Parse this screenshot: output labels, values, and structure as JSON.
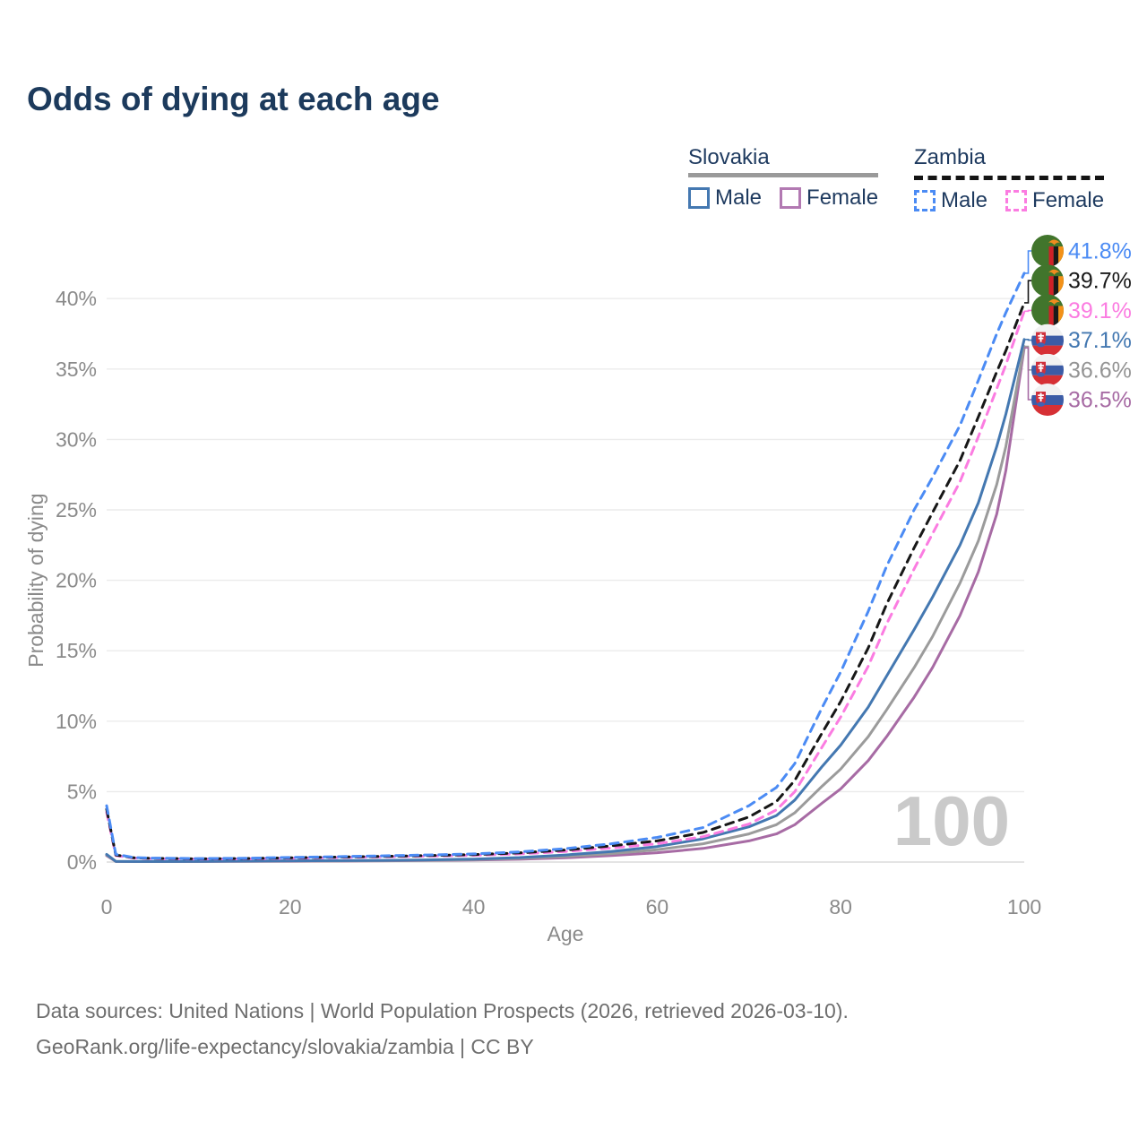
{
  "header": {
    "title": "Odds of dying at each age"
  },
  "legend": {
    "groups": [
      {
        "label": "Slovakia",
        "line_style": "solid",
        "underline_color": "#9a9a9a",
        "items": [
          {
            "label": "Male",
            "color": "#4478b1",
            "dashed": false
          },
          {
            "label": "Female",
            "color": "#b279b2",
            "dashed": false
          }
        ]
      },
      {
        "label": "Zambia",
        "line_style": "dashed",
        "underline_color": "#141414",
        "items": [
          {
            "label": "Male",
            "color": "#4b8bf4",
            "dashed": true
          },
          {
            "label": "Female",
            "color": "#fb7ce1",
            "dashed": true
          }
        ]
      }
    ]
  },
  "chart_data": {
    "type": "line",
    "title": "Odds of dying at each age",
    "xlabel": "Age",
    "ylabel": "Probability of dying",
    "xlim": [
      0,
      100
    ],
    "ylim": [
      0,
      42
    ],
    "x_ticks": [
      0,
      20,
      40,
      60,
      80,
      100
    ],
    "y_ticks": [
      0,
      5,
      10,
      15,
      20,
      25,
      30,
      35,
      40
    ],
    "y_tick_suffix": "%",
    "grid": "horizontal",
    "legend_position": "top-right",
    "watermark": "100",
    "ages": [
      0,
      1,
      3,
      5,
      10,
      15,
      20,
      25,
      30,
      35,
      40,
      45,
      50,
      55,
      60,
      65,
      70,
      73,
      75,
      78,
      80,
      83,
      85,
      88,
      90,
      93,
      95,
      97,
      98,
      100
    ],
    "series": [
      {
        "name": "Zambia Male",
        "country": "Zambia",
        "sex": "Male",
        "flag": "zambia",
        "color": "#4b8bf4",
        "dashed": true,
        "end_label": "41.8%",
        "end_value": 41.8,
        "label_color": "#4b8bf4",
        "values": [
          4.0,
          0.55,
          0.32,
          0.28,
          0.25,
          0.27,
          0.33,
          0.38,
          0.44,
          0.5,
          0.58,
          0.72,
          0.95,
          1.3,
          1.75,
          2.45,
          4.0,
          5.3,
          7.0,
          11.0,
          13.5,
          17.8,
          21.0,
          25.0,
          27.3,
          31.0,
          34.2,
          37.5,
          39.0,
          41.8
        ]
      },
      {
        "name": "Zambia Both sexes",
        "country": "Zambia",
        "sex": "Both",
        "flag": "zambia",
        "color": "#171717",
        "dashed": true,
        "end_label": "39.7%",
        "end_value": 39.7,
        "label_color": "#1a1a1a",
        "values": [
          3.75,
          0.5,
          0.3,
          0.26,
          0.23,
          0.25,
          0.3,
          0.35,
          0.4,
          0.46,
          0.53,
          0.65,
          0.85,
          1.15,
          1.5,
          2.1,
          3.2,
          4.3,
          5.8,
          9.2,
          11.4,
          15.2,
          18.3,
          22.3,
          24.8,
          28.5,
          31.6,
          34.8,
          36.3,
          39.7
        ]
      },
      {
        "name": "Zambia Female",
        "country": "Zambia",
        "sex": "Female",
        "flag": "zambia",
        "color": "#fb7ce1",
        "dashed": true,
        "end_label": "39.1%",
        "end_value": 39.1,
        "label_color": "#fb7ce1",
        "values": [
          3.55,
          0.46,
          0.28,
          0.24,
          0.21,
          0.23,
          0.27,
          0.32,
          0.37,
          0.42,
          0.48,
          0.58,
          0.75,
          1.0,
          1.3,
          1.8,
          2.7,
          3.7,
          5.0,
          8.2,
          10.3,
          13.9,
          16.9,
          20.8,
          23.3,
          27.0,
          30.2,
          33.6,
          35.3,
          39.1
        ]
      },
      {
        "name": "Slovakia Male",
        "country": "Slovakia",
        "sex": "Male",
        "flag": "slovakia",
        "color": "#4478b1",
        "dashed": false,
        "end_label": "37.1%",
        "end_value": 37.1,
        "label_color": "#4478b1",
        "values": [
          0.55,
          0.05,
          0.04,
          0.04,
          0.05,
          0.07,
          0.09,
          0.1,
          0.12,
          0.15,
          0.21,
          0.32,
          0.5,
          0.75,
          1.1,
          1.65,
          2.5,
          3.3,
          4.4,
          6.8,
          8.3,
          11.0,
          13.2,
          16.5,
          18.8,
          22.5,
          25.5,
          29.5,
          31.8,
          37.1
        ]
      },
      {
        "name": "Slovakia Both sexes",
        "country": "Slovakia",
        "sex": "Both",
        "flag": "slovakia",
        "color": "#9b9b9b",
        "dashed": false,
        "end_label": "36.6%",
        "end_value": 36.6,
        "label_color": "#949494",
        "values": [
          0.5,
          0.045,
          0.035,
          0.035,
          0.045,
          0.06,
          0.075,
          0.085,
          0.1,
          0.13,
          0.17,
          0.26,
          0.4,
          0.6,
          0.88,
          1.3,
          2.0,
          2.65,
          3.5,
          5.4,
          6.6,
          8.9,
          10.8,
          13.8,
          16.0,
          19.8,
          22.8,
          26.8,
          29.5,
          36.6
        ]
      },
      {
        "name": "Slovakia Female",
        "country": "Slovakia",
        "sex": "Female",
        "flag": "slovakia",
        "color": "#a76ba4",
        "dashed": false,
        "end_label": "36.5%",
        "end_value": 36.5,
        "label_color": "#a76ba4",
        "values": [
          0.45,
          0.04,
          0.03,
          0.03,
          0.04,
          0.05,
          0.06,
          0.07,
          0.09,
          0.11,
          0.14,
          0.2,
          0.3,
          0.46,
          0.66,
          0.97,
          1.5,
          2.0,
          2.65,
          4.2,
          5.2,
          7.2,
          8.9,
          11.7,
          13.8,
          17.5,
          20.6,
          24.7,
          27.8,
          36.5
        ]
      }
    ]
  },
  "footer": {
    "line1": "Data sources: United Nations | World Population Prospects (2026, retrieved 2026-03-10).",
    "line2": "GeoRank.org/life-expectancy/slovakia/zambia | CC BY"
  }
}
